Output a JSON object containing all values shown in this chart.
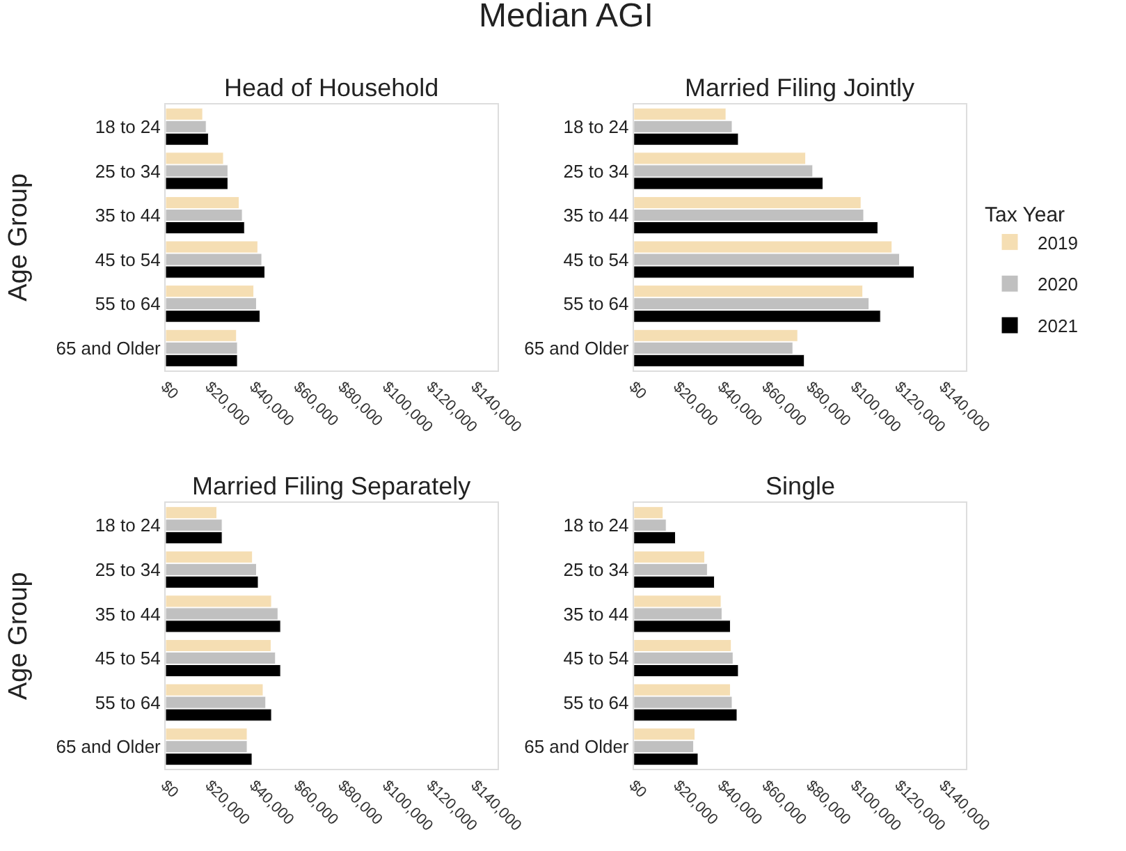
{
  "chart_data": [
    {
      "type": "bar",
      "orientation": "horizontal",
      "title": "Head of Household",
      "ylabel": "Age Group",
      "legend": "right",
      "legend_title": "Tax Year",
      "annotations": [
        "Median AGI"
      ],
      "grid": false,
      "categories": [
        "18 to 24",
        "25 to 34",
        "35 to 44",
        "45 to 54",
        "55 to 64",
        "65 and Older"
      ],
      "series": [
        {
          "name": "2019",
          "color": "#f5deb3",
          "values": [
            16700,
            26100,
            33200,
            41600,
            39800,
            32000
          ]
        },
        {
          "name": "2020",
          "color": "#c0c0c0",
          "values": [
            18300,
            28100,
            34600,
            43400,
            41000,
            32400
          ]
        },
        {
          "name": "2021",
          "color": "#000000",
          "values": [
            19300,
            28100,
            35600,
            44800,
            42600,
            32400
          ]
        }
      ],
      "xlim": [
        0,
        150000
      ],
      "xticks": [
        {
          "value": 0,
          "label": "$0"
        },
        {
          "value": 20000,
          "label": "$20,000"
        },
        {
          "value": 40000,
          "label": "$40,000"
        },
        {
          "value": 60000,
          "label": "$60,000"
        },
        {
          "value": 80000,
          "label": "$80,000"
        },
        {
          "value": 100000,
          "label": "$100,000"
        },
        {
          "value": 120000,
          "label": "$120,000"
        },
        {
          "value": 140000,
          "label": "$140,000"
        }
      ]
    },
    {
      "type": "bar",
      "orientation": "horizontal",
      "title": "Married Filing Jointly",
      "grid": false,
      "categories": [
        "18 to 24",
        "25 to 34",
        "35 to 44",
        "45 to 54",
        "55 to 64",
        "65 and Older"
      ],
      "series": [
        {
          "name": "2019",
          "color": "#f5deb3",
          "values": [
            41600,
            77600,
            102600,
            116600,
            103400,
            74000
          ]
        },
        {
          "name": "2020",
          "color": "#c0c0c0",
          "values": [
            44400,
            80800,
            103800,
            120000,
            106200,
            71800
          ]
        },
        {
          "name": "2021",
          "color": "#000000",
          "values": [
            47200,
            85400,
            110200,
            126600,
            111400,
            77000
          ]
        }
      ],
      "xlim": [
        0,
        150000
      ],
      "xticks": [
        {
          "value": 0,
          "label": "$0"
        },
        {
          "value": 20000,
          "label": "$20,000"
        },
        {
          "value": 40000,
          "label": "$40,000"
        },
        {
          "value": 60000,
          "label": "$60,000"
        },
        {
          "value": 80000,
          "label": "$80,000"
        },
        {
          "value": 100000,
          "label": "$100,000"
        },
        {
          "value": 120000,
          "label": "$120,000"
        },
        {
          "value": 140000,
          "label": "$140,000"
        }
      ]
    },
    {
      "type": "bar",
      "orientation": "horizontal",
      "title": "Married Filing Separately",
      "ylabel": "Age Group",
      "grid": false,
      "categories": [
        "18 to 24",
        "25 to 34",
        "35 to 44",
        "45 to 54",
        "55 to 64",
        "65 and Older"
      ],
      "series": [
        {
          "name": "2019",
          "color": "#f5deb3",
          "values": [
            23100,
            39200,
            47800,
            47600,
            44000,
            36800
          ]
        },
        {
          "name": "2020",
          "color": "#c0c0c0",
          "values": [
            25500,
            41000,
            50700,
            49600,
            45200,
            36800
          ]
        },
        {
          "name": "2021",
          "color": "#000000",
          "values": [
            25500,
            41800,
            51900,
            51900,
            47800,
            39000
          ]
        }
      ],
      "xlim": [
        0,
        150000
      ],
      "xticks": [
        {
          "value": 0,
          "label": "$0"
        },
        {
          "value": 20000,
          "label": "$20,000"
        },
        {
          "value": 40000,
          "label": "$40,000"
        },
        {
          "value": 60000,
          "label": "$60,000"
        },
        {
          "value": 80000,
          "label": "$80,000"
        },
        {
          "value": 100000,
          "label": "$100,000"
        },
        {
          "value": 120000,
          "label": "$120,000"
        },
        {
          "value": 140000,
          "label": "$140,000"
        }
      ]
    },
    {
      "type": "bar",
      "orientation": "horizontal",
      "title": "Single",
      "grid": false,
      "categories": [
        "18 to 24",
        "25 to 34",
        "35 to 44",
        "45 to 54",
        "55 to 64",
        "65 and Older"
      ],
      "series": [
        {
          "name": "2019",
          "color": "#f5deb3",
          "values": [
            13200,
            32000,
            39400,
            44000,
            43600,
            27600
          ]
        },
        {
          "name": "2020",
          "color": "#c0c0c0",
          "values": [
            14600,
            33200,
            39800,
            44800,
            44400,
            27000
          ]
        },
        {
          "name": "2021",
          "color": "#000000",
          "values": [
            18800,
            36400,
            43600,
            47200,
            46600,
            29000
          ]
        }
      ],
      "xlim": [
        0,
        150000
      ],
      "xticks": [
        {
          "value": 0,
          "label": "$0"
        },
        {
          "value": 20000,
          "label": "$20,000"
        },
        {
          "value": 40000,
          "label": "$40,000"
        },
        {
          "value": 60000,
          "label": "$60,000"
        },
        {
          "value": 80000,
          "label": "$80,000"
        },
        {
          "value": 100000,
          "label": "$100,000"
        },
        {
          "value": 120000,
          "label": "$120,000"
        },
        {
          "value": 140000,
          "label": "$140,000"
        }
      ]
    }
  ]
}
